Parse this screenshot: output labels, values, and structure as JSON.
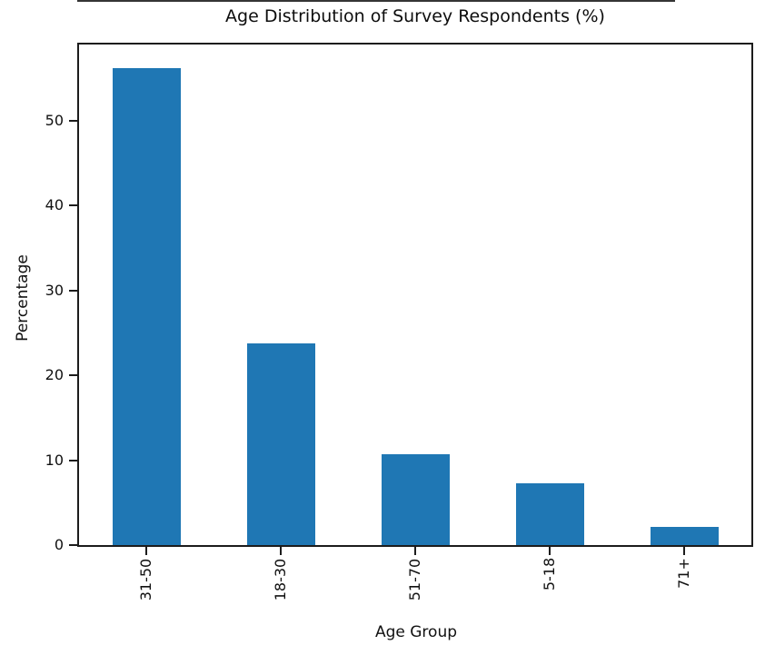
{
  "chart_data": {
    "type": "bar",
    "title": "Age Distribution of Survey Respondents (%)",
    "xlabel": "Age Group",
    "ylabel": "Percentage",
    "categories": [
      "31-50",
      "18-30",
      "51-70",
      "5-18",
      "71+"
    ],
    "values": [
      56.2,
      23.8,
      10.7,
      7.3,
      2.1
    ],
    "yticks": [
      0,
      10,
      20,
      30,
      40,
      50
    ],
    "ylim": [
      0,
      59
    ],
    "x_tick_rotation": 90,
    "grid": false,
    "legend": null,
    "bar_color": "#1f77b4",
    "axis_color": "#1c1c1c",
    "text_color": "#111111",
    "background_color": "#ffffff"
  }
}
